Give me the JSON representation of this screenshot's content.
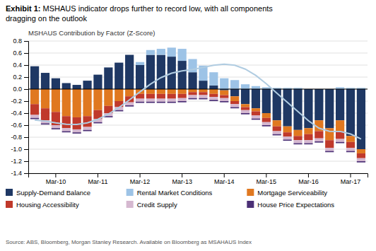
{
  "chart_data": {
    "type": "bar",
    "title": "Exhibit 1: MSHAUS indicator drops further to record low, with all components\ndragging on the outlook",
    "subtitle": "MSHAUS Contribution by Factor (Z-Score)",
    "annotations": [
      "Source: ABS, Bloomberg, Morgan Stanley Research. Available on Bloomberg as MSAHAUS Index"
    ],
    "stacked": true,
    "grid": true,
    "legend": "bottom",
    "categories": [
      null,
      null,
      "Mar-10",
      null,
      null,
      null,
      "Mar-11",
      null,
      null,
      null,
      "Mar-12",
      null,
      null,
      null,
      "Mar-13",
      null,
      null,
      null,
      "Mar-14",
      null,
      null,
      null,
      "Mar-15",
      null,
      null,
      null,
      "Mar-16",
      null,
      null,
      null,
      "Mar-17",
      null
    ],
    "ylim": [
      -1.4,
      0.8
    ],
    "yticks": [
      -1.4,
      -1.2,
      {
        "value": -1,
        "label": "-1.0"
      },
      -0.8,
      -0.6,
      -0.4,
      -0.2,
      {
        "value": 0,
        "label": "0.0"
      },
      0.2,
      0.4,
      0.6,
      0.8
    ],
    "series": [
      {
        "name": "Supply-Demand Balance",
        "type": "bar",
        "color": "#1F3864",
        "values": [
          0.38,
          0.27,
          0.18,
          0.1,
          0.07,
          0.14,
          0.24,
          0.36,
          0.44,
          0.57,
          0.4,
          0.57,
          0.57,
          0.54,
          0.47,
          0.28,
          0.14,
          0.06,
          -0.02,
          -0.12,
          -0.25,
          -0.32,
          -0.4,
          -0.52,
          -0.62,
          -0.68,
          -0.65,
          -0.52,
          -0.65,
          -0.52,
          -0.78,
          -1.0
        ]
      },
      {
        "name": "Rental Market Conditions",
        "type": "bar",
        "color": "#9DC3E6",
        "values": [
          0.0,
          0.0,
          0.0,
          0.0,
          0.0,
          0.0,
          0.0,
          0.0,
          0.0,
          0.0,
          0.05,
          0.08,
          0.1,
          0.15,
          0.2,
          0.22,
          0.25,
          0.22,
          0.18,
          0.15,
          0.08,
          0.05,
          0.03,
          0.02,
          0.02,
          0.02,
          0.0,
          0.0,
          0.0,
          0.03,
          0.02,
          0.02
        ]
      },
      {
        "name": "Mortgage Serviceability",
        "type": "bar",
        "color": "#E07820",
        "values": [
          -0.25,
          -0.32,
          -0.38,
          -0.45,
          -0.47,
          -0.45,
          -0.35,
          -0.28,
          -0.2,
          -0.12,
          -0.08,
          -0.08,
          -0.08,
          -0.08,
          -0.08,
          -0.05,
          -0.05,
          -0.08,
          -0.08,
          -0.08,
          -0.05,
          -0.05,
          -0.08,
          -0.1,
          -0.1,
          -0.1,
          -0.1,
          -0.18,
          -0.2,
          -0.18,
          -0.1,
          -0.07
        ]
      },
      {
        "name": "Housing Accessibility",
        "type": "bar",
        "color": "#C0392B",
        "values": [
          -0.18,
          -0.2,
          -0.22,
          -0.2,
          -0.2,
          -0.18,
          -0.15,
          -0.12,
          -0.1,
          -0.1,
          -0.08,
          -0.08,
          -0.08,
          -0.08,
          -0.07,
          -0.05,
          -0.05,
          -0.05,
          -0.05,
          -0.05,
          -0.05,
          -0.07,
          -0.07,
          -0.08,
          -0.07,
          -0.07,
          -0.1,
          -0.12,
          -0.13,
          -0.13,
          -0.1,
          -0.08
        ]
      },
      {
        "name": "Credit Supply",
        "type": "bar",
        "color": "#D5B8D0",
        "values": [
          -0.05,
          -0.05,
          -0.05,
          -0.05,
          -0.05,
          -0.05,
          -0.05,
          -0.05,
          -0.05,
          -0.05,
          -0.05,
          -0.05,
          -0.05,
          -0.05,
          -0.05,
          -0.05,
          -0.05,
          -0.05,
          -0.05,
          -0.05,
          -0.05,
          -0.05,
          -0.05,
          -0.05,
          -0.05,
          -0.05,
          -0.05,
          -0.05,
          -0.05,
          -0.05,
          -0.05,
          -0.05
        ]
      },
      {
        "name": "House Price Expectations",
        "type": "bar",
        "color": "#4B3076",
        "values": [
          -0.02,
          -0.02,
          -0.02,
          -0.02,
          -0.02,
          -0.02,
          -0.02,
          -0.02,
          -0.02,
          -0.02,
          -0.02,
          -0.02,
          -0.02,
          -0.02,
          -0.02,
          -0.02,
          -0.02,
          -0.02,
          -0.02,
          -0.02,
          -0.02,
          -0.02,
          -0.02,
          -0.02,
          -0.02,
          -0.02,
          -0.02,
          -0.02,
          -0.02,
          -0.02,
          -0.02,
          -0.02
        ]
      },
      {
        "type": "line",
        "color": "#B0CCE1",
        "values": [
          -0.5149,
          -0.5336,
          -0.5626,
          -0.5864,
          -0.5888,
          -0.5608,
          -0.5026,
          -0.4171,
          -0.3068,
          -0.1797,
          -0.046,
          0.0829,
          0.1913,
          0.2645,
          0.3027,
          0.3272,
          0.3601,
          0.3972,
          0.4158,
          0.3969,
          0.333,
          0.2274,
          0.0879,
          -0.0682,
          -0.2217,
          -0.3743,
          -0.5273,
          -0.6502,
          -0.7026,
          -0.7047,
          -0.7476,
          -0.8309
        ]
      }
    ]
  }
}
